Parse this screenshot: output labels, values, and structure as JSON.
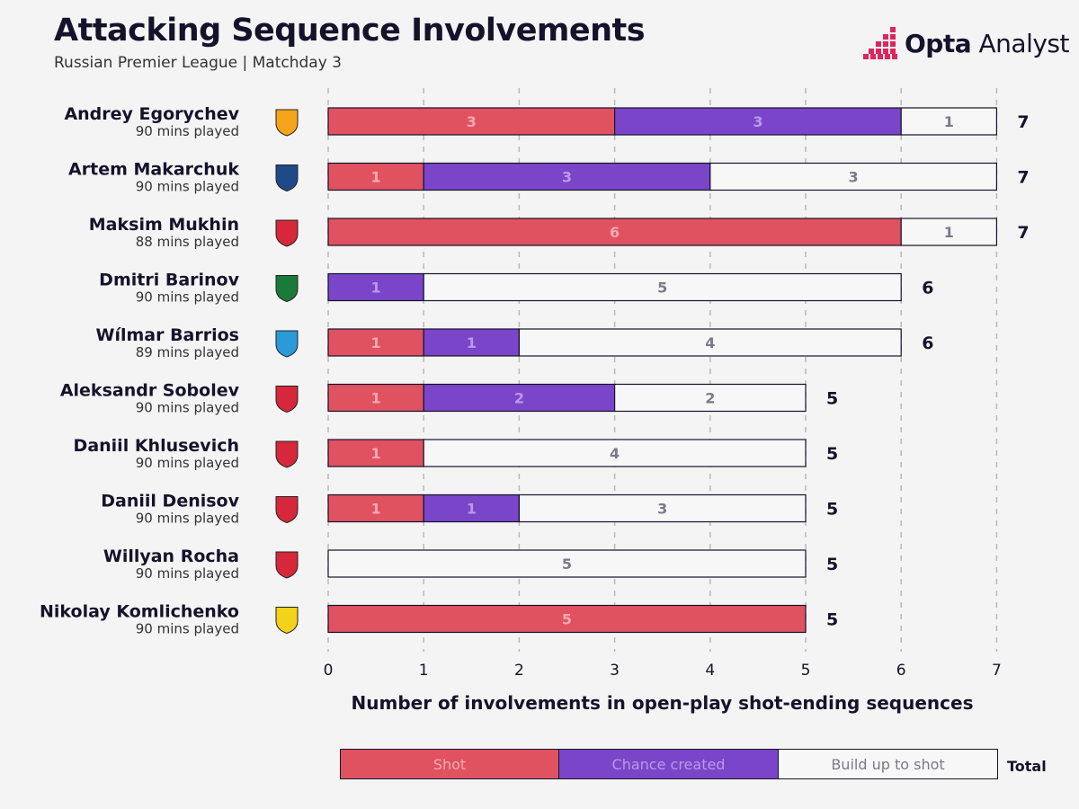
{
  "header": {
    "title": "Attacking Sequence Involvements",
    "subtitle": "Russian Premier League | Matchday 3",
    "brand_bold": "Opta",
    "brand_light": " Analyst"
  },
  "colors": {
    "shot": "#e05260",
    "chance": "#7b45c9",
    "build": "#f7f7f7",
    "ink": "#15132b"
  },
  "legend": {
    "shot": "Shot",
    "chance": "Chance created",
    "build": "Build up to shot",
    "total": "Total"
  },
  "chart_data": {
    "type": "bar",
    "orientation": "horizontal",
    "stacked": true,
    "xlabel": "Number of involvements in open-play shot-ending sequences",
    "xlim": [
      0,
      7
    ],
    "xticks": [
      0,
      1,
      2,
      3,
      4,
      5,
      6,
      7
    ],
    "categories": [
      {
        "name": "Andrey Egorychev",
        "minutes": "90 mins played",
        "club_icon": "krylia-sovetov-badge"
      },
      {
        "name": "Artem Makarchuk",
        "minutes": "90 mins played",
        "club_icon": "sochi-badge"
      },
      {
        "name": "Maksim Mukhin",
        "minutes": "88 mins played",
        "club_icon": "cska-moscow-badge"
      },
      {
        "name": "Dmitri Barinov",
        "minutes": "90 mins played",
        "club_icon": "lokomotiv-moscow-badge"
      },
      {
        "name": "Wílmar Barrios",
        "minutes": "89 mins played",
        "club_icon": "zenit-badge"
      },
      {
        "name": "Aleksandr Sobolev",
        "minutes": "90 mins played",
        "club_icon": "spartak-moscow-badge"
      },
      {
        "name": "Daniil Khlusevich",
        "minutes": "90 mins played",
        "club_icon": "spartak-moscow-badge"
      },
      {
        "name": "Daniil Denisov",
        "minutes": "90 mins played",
        "club_icon": "spartak-moscow-badge"
      },
      {
        "name": "Willyan Rocha",
        "minutes": "90 mins played",
        "club_icon": "cska-moscow-badge"
      },
      {
        "name": "Nikolay Komlichenko",
        "minutes": "90 mins played",
        "club_icon": "rostov-badge"
      }
    ],
    "series": [
      {
        "name": "Shot",
        "values": [
          3,
          1,
          6,
          0,
          1,
          1,
          1,
          1,
          0,
          5
        ]
      },
      {
        "name": "Chance created",
        "values": [
          3,
          3,
          0,
          1,
          1,
          2,
          0,
          1,
          0,
          0
        ]
      },
      {
        "name": "Build up to shot",
        "values": [
          1,
          3,
          1,
          5,
          4,
          2,
          4,
          3,
          5,
          0
        ]
      }
    ],
    "totals": [
      7,
      7,
      7,
      6,
      6,
      5,
      5,
      5,
      5,
      5
    ]
  }
}
